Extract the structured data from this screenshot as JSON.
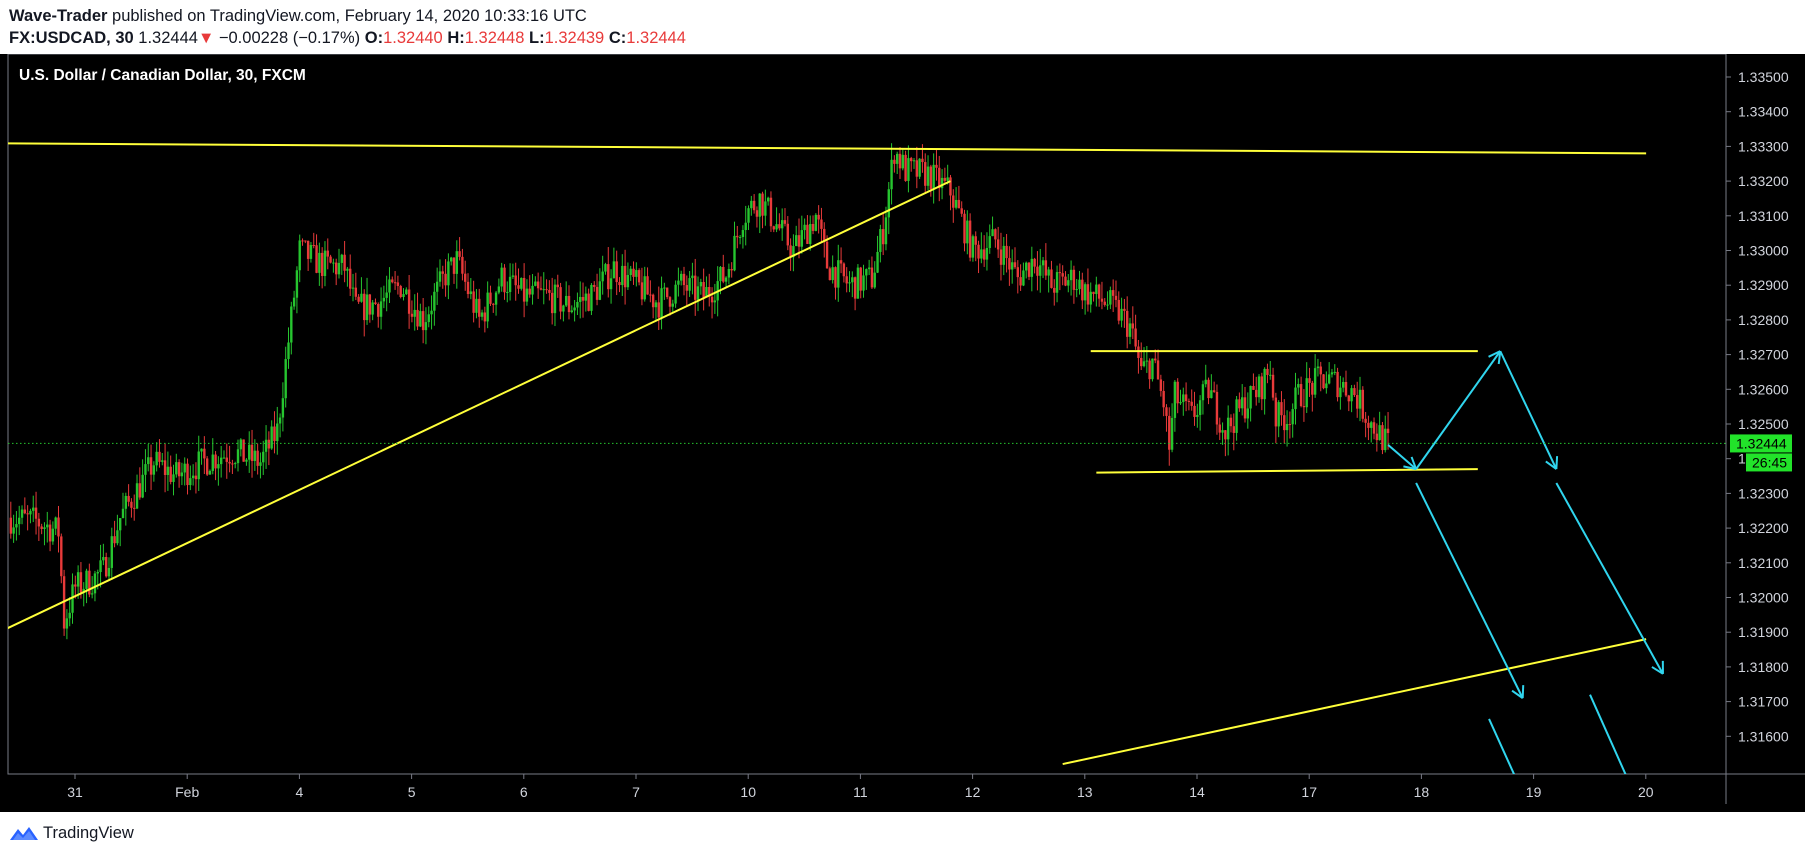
{
  "header": {
    "author": "Wave-Trader",
    "published_text": "published on TradingView.com, February 14, 2020 10:33:16 UTC",
    "symbol": "FX:USDCAD, 30",
    "last_price": "1.32444",
    "change_arrow": "▼",
    "change": "−0.00228 (−0.17%)",
    "open_label": "O:",
    "open": "1.32440",
    "high_label": "H:",
    "high": "1.32448",
    "low_label": "L:",
    "low": "1.32439",
    "close_label": "C:",
    "close": "1.32444"
  },
  "footer": {
    "brand": "TradingView",
    "logo_icon": "tradingview-logo-icon"
  },
  "chart_data": {
    "type": "candlestick",
    "title": "U.S. Dollar / Canadian Dollar, 30, FXCM",
    "x_ticks": [
      "31",
      "Feb",
      "4",
      "5",
      "6",
      "7",
      "10",
      "11",
      "12",
      "13",
      "14",
      "17",
      "18",
      "19",
      "20"
    ],
    "y_ticks": [
      "1.33500",
      "1.33400",
      "1.33300",
      "1.33200",
      "1.33100",
      "1.33000",
      "1.32900",
      "1.32800",
      "1.32700",
      "1.32600",
      "1.32500",
      "1.32400",
      "1.32300",
      "1.32200",
      "1.32100",
      "1.32000",
      "1.31900",
      "1.31800",
      "1.31700",
      "1.31600"
    ],
    "ylim": [
      1.3155,
      1.3355
    ],
    "price_label": "1.32444",
    "countdown_label": "26:45",
    "colors": {
      "up": "#26c52f",
      "down": "#e83a3a",
      "trendline": "#ffff3a",
      "projection": "#30d5ee",
      "price_line": "#26c52f",
      "background": "#000000"
    },
    "price_path": [
      [
        0,
        1.3223
      ],
      [
        0.25,
        1.3222
      ],
      [
        0.45,
        1.3219
      ],
      [
        0.5,
        1.3193
      ],
      [
        0.6,
        1.3203
      ],
      [
        0.75,
        1.3205
      ],
      [
        0.85,
        1.3208
      ],
      [
        1.0,
        1.3223
      ],
      [
        1.3,
        1.3239
      ],
      [
        1.5,
        1.3235
      ],
      [
        1.8,
        1.324
      ],
      [
        2.0,
        1.3242
      ],
      [
        2.25,
        1.3239
      ],
      [
        2.4,
        1.3248
      ],
      [
        2.6,
        1.33
      ],
      [
        2.8,
        1.3296
      ],
      [
        3.0,
        1.3295
      ],
      [
        3.1,
        1.3283
      ],
      [
        3.3,
        1.3285
      ],
      [
        3.5,
        1.329
      ],
      [
        3.7,
        1.328
      ],
      [
        3.9,
        1.3293
      ],
      [
        4.0,
        1.3297
      ],
      [
        4.2,
        1.328
      ],
      [
        4.4,
        1.3292
      ],
      [
        4.6,
        1.3287
      ],
      [
        4.8,
        1.3287
      ],
      [
        5.0,
        1.3284
      ],
      [
        5.2,
        1.3287
      ],
      [
        5.4,
        1.3295
      ],
      [
        5.6,
        1.329
      ],
      [
        5.8,
        1.3285
      ],
      [
        6.0,
        1.329
      ],
      [
        6.2,
        1.3287
      ],
      [
        6.4,
        1.3293
      ],
      [
        6.55,
        1.331
      ],
      [
        6.7,
        1.3315
      ],
      [
        7.0,
        1.33
      ],
      [
        7.2,
        1.331
      ],
      [
        7.3,
        1.3296
      ],
      [
        7.5,
        1.329
      ],
      [
        7.7,
        1.3292
      ],
      [
        7.8,
        1.3306
      ],
      [
        7.9,
        1.3329
      ],
      [
        8.0,
        1.3323
      ],
      [
        8.2,
        1.3322
      ],
      [
        8.4,
        1.3317
      ],
      [
        8.6,
        1.33
      ],
      [
        8.8,
        1.3303
      ],
      [
        9.0,
        1.3292
      ],
      [
        9.15,
        1.3298
      ],
      [
        9.3,
        1.329
      ],
      [
        9.5,
        1.3292
      ],
      [
        9.6,
        1.3288
      ],
      [
        9.8,
        1.3285
      ],
      [
        9.9,
        1.3282
      ],
      [
        10.0,
        1.3278
      ],
      [
        10.1,
        1.3265
      ],
      [
        10.2,
        1.3268
      ],
      [
        10.3,
        1.3256
      ],
      [
        10.35,
        1.3243
      ],
      [
        10.4,
        1.3258
      ],
      [
        10.55,
        1.3252
      ],
      [
        10.7,
        1.326
      ],
      [
        10.85,
        1.3248
      ],
      [
        11.0,
        1.3255
      ],
      [
        11.15,
        1.326
      ],
      [
        11.25,
        1.3266
      ],
      [
        11.3,
        1.3252
      ],
      [
        11.4,
        1.3252
      ],
      [
        11.5,
        1.3258
      ],
      [
        11.7,
        1.3263
      ],
      [
        11.85,
        1.3262
      ],
      [
        12.0,
        1.3259
      ],
      [
        12.15,
        1.325
      ],
      [
        12.3,
        1.3244
      ]
    ],
    "trendlines": [
      {
        "name": "upper-resistance",
        "from": [
          -0.6,
          1.3331
        ],
        "to": [
          14.6,
          1.3328
        ]
      },
      {
        "name": "rising-support",
        "from": [
          -0.6,
          1.3182
        ],
        "to": [
          8.4,
          1.332
        ]
      },
      {
        "name": "lower-channel",
        "from": [
          9.4,
          1.3152
        ],
        "to": [
          14.6,
          1.3188
        ]
      },
      {
        "name": "range-top",
        "from": [
          9.65,
          1.3271
        ],
        "to": [
          13.1,
          1.3271
        ]
      },
      {
        "name": "range-bottom",
        "from": [
          9.7,
          1.3236
        ],
        "to": [
          13.1,
          1.3237
        ]
      }
    ],
    "projections": [
      {
        "from": [
          12.3,
          1.3244
        ],
        "to": [
          12.55,
          1.3237
        ]
      },
      {
        "from": [
          12.55,
          1.3237
        ],
        "to": [
          13.3,
          1.3271
        ]
      },
      {
        "from": [
          13.3,
          1.3271
        ],
        "to": [
          13.8,
          1.3237
        ]
      },
      {
        "from": [
          12.55,
          1.3233
        ],
        "to": [
          13.5,
          1.3171
        ]
      },
      {
        "from": [
          13.8,
          1.3233
        ],
        "to": [
          14.75,
          1.3178
        ]
      },
      {
        "from": [
          13.2,
          1.3165
        ],
        "to": [
          13.55,
          1.314
        ]
      },
      {
        "from": [
          14.1,
          1.3172
        ],
        "to": [
          14.5,
          1.3143
        ]
      }
    ]
  }
}
